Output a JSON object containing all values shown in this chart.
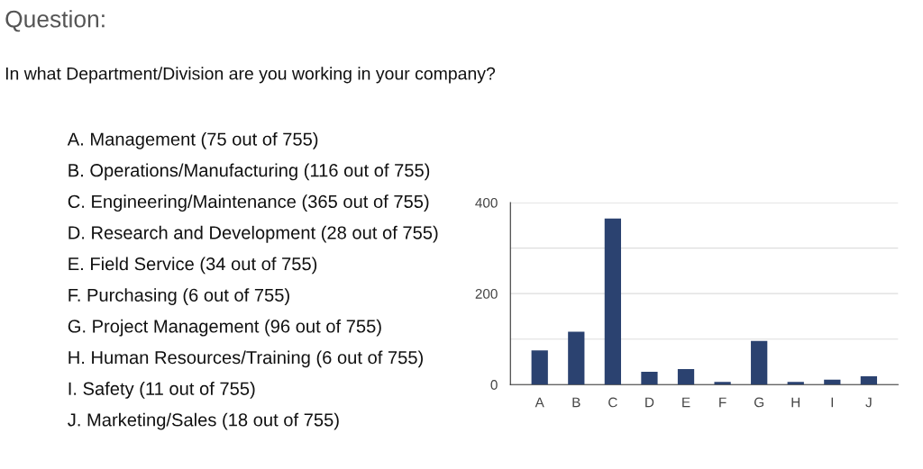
{
  "chart_data": {
    "type": "bar",
    "title": "Question:",
    "subtitle": "In what Department/Division are you working in your company?",
    "categories": [
      "A",
      "B",
      "C",
      "D",
      "E",
      "F",
      "G",
      "H",
      "I",
      "J"
    ],
    "values": [
      75,
      116,
      365,
      28,
      34,
      6,
      96,
      6,
      11,
      18
    ],
    "color": "#2b4270",
    "ylim": [
      0,
      400
    ],
    "yticks": [
      0,
      {
        "value": 100,
        "label": null
      },
      200,
      {
        "value": 300,
        "label": null
      },
      400
    ],
    "grid": "y",
    "legend": false,
    "annotations": [
      "A. Management (75 out of 755)",
      "B. Operations/Manufacturing (116 out of 755)",
      "C. Engineering/Maintenance (365 out of 755)",
      "D. Research and Development (28 out of 755)",
      "E. Field Service (34 out of 755)",
      "F. Purchasing (6 out of 755)",
      "G. Project Management (96 out of 755)",
      "H. Human Resources/Training (6 out of 755)",
      "I. Safety (11 out of 755)",
      "J. Marketing/Sales (18 out of 755)"
    ]
  }
}
